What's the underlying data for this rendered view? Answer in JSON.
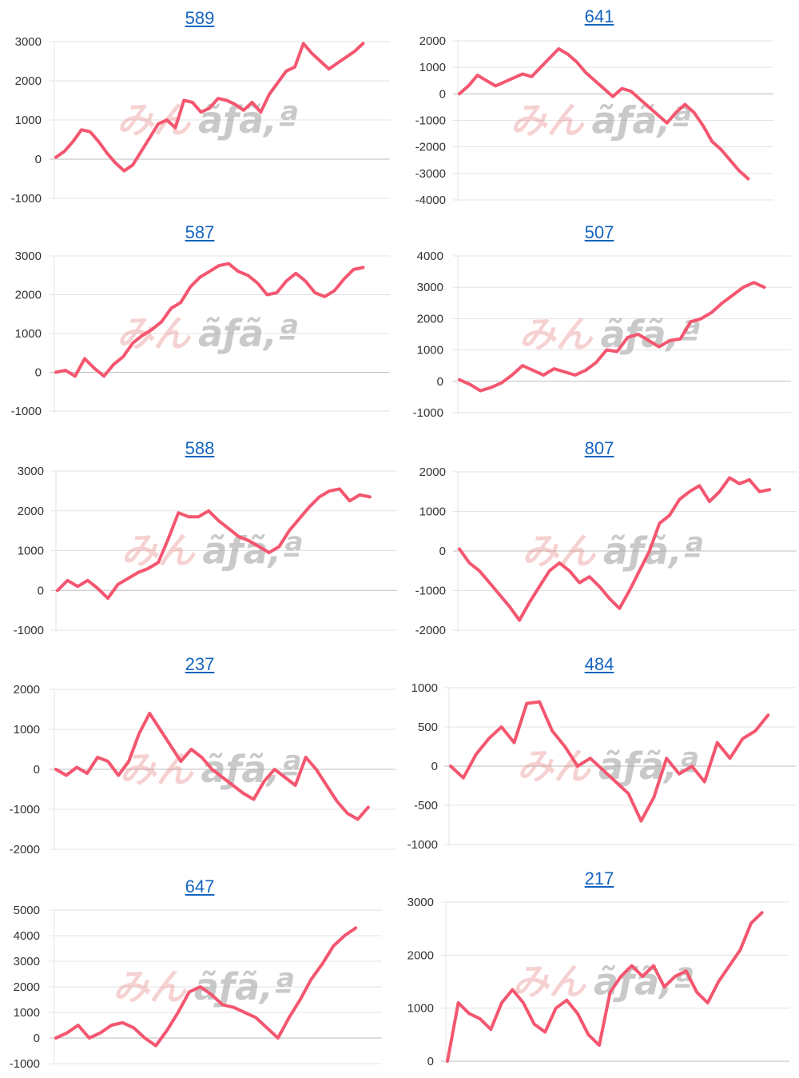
{
  "colors": {
    "line": "#f4566f",
    "title_link": "#1565c0",
    "watermark_a": "#e57373",
    "watermark_b": "#9e9e9e"
  },
  "watermark": {
    "part_a": "みん",
    "part_b": "ãƒã‚ª"
  },
  "chart_data": [
    {
      "type": "line",
      "title": "589",
      "ylim": [
        -1000,
        3000
      ],
      "ticks": [
        3000,
        2000,
        1000,
        0,
        -1000
      ],
      "series": [
        {
          "values": [
            50,
            200,
            450,
            750,
            700,
            450,
            150,
            -100,
            -300,
            -150,
            200,
            550,
            900,
            1000,
            800,
            1500,
            1450,
            1200,
            1300,
            1550,
            1500,
            1400,
            1250,
            1450,
            1200,
            1650,
            1950,
            2250,
            2350,
            2950,
            2700,
            2500,
            2300,
            2450,
            2600,
            2750,
            2950
          ]
        }
      ]
    },
    {
      "type": "line",
      "title": "641",
      "ylim": [
        -4000,
        2000
      ],
      "ticks": [
        2000,
        1000,
        0,
        -1000,
        -2000,
        -3000,
        -4000
      ],
      "series": [
        {
          "values": [
            0,
            300,
            700,
            500,
            300,
            450,
            600,
            750,
            650,
            1000,
            1350,
            1700,
            1500,
            1200,
            800,
            500,
            200,
            -100,
            200,
            100,
            -200,
            -500,
            -800,
            -1100,
            -700,
            -400,
            -700,
            -1200,
            -1800,
            -2100,
            -2500,
            -2900,
            -3200
          ]
        }
      ]
    },
    {
      "type": "line",
      "title": "587",
      "ylim": [
        -1000,
        3000
      ],
      "ticks": [
        3000,
        2000,
        1000,
        0,
        -1000
      ],
      "series": [
        {
          "values": [
            0,
            50,
            -100,
            350,
            100,
            -100,
            200,
            400,
            750,
            950,
            1100,
            1300,
            1650,
            1800,
            2200,
            2450,
            2600,
            2750,
            2800,
            2600,
            2500,
            2300,
            2000,
            2050,
            2350,
            2550,
            2350,
            2050,
            1950,
            2100,
            2400,
            2650,
            2700
          ]
        }
      ]
    },
    {
      "type": "line",
      "title": "507",
      "ylim": [
        -1000,
        4000
      ],
      "ticks": [
        4000,
        3000,
        2000,
        1000,
        0,
        -1000
      ],
      "series": [
        {
          "values": [
            50,
            -100,
            -300,
            -200,
            -50,
            200,
            500,
            350,
            200,
            400,
            300,
            200,
            350,
            600,
            1000,
            950,
            1400,
            1500,
            1300,
            1100,
            1300,
            1350,
            1900,
            2000,
            2200,
            2500,
            2750,
            3000,
            3150,
            3000
          ]
        }
      ]
    },
    {
      "type": "line",
      "title": "588",
      "ylim": [
        -1000,
        3000
      ],
      "ticks": [
        3000,
        2000,
        1000,
        0,
        -1000
      ],
      "series": [
        {
          "values": [
            0,
            250,
            100,
            250,
            50,
            -200,
            150,
            300,
            450,
            550,
            700,
            1300,
            1950,
            1850,
            1850,
            2000,
            1750,
            1550,
            1350,
            1250,
            1100,
            950,
            1100,
            1500,
            1800,
            2100,
            2350,
            2500,
            2550,
            2250,
            2400,
            2350
          ]
        }
      ]
    },
    {
      "type": "line",
      "title": "807",
      "ylim": [
        -2000,
        2000
      ],
      "ticks": [
        2000,
        1000,
        0,
        -1000,
        -2000
      ],
      "series": [
        {
          "values": [
            50,
            -300,
            -500,
            -800,
            -1100,
            -1400,
            -1750,
            -1300,
            -900,
            -500,
            -300,
            -500,
            -800,
            -650,
            -900,
            -1200,
            -1450,
            -1000,
            -500,
            0,
            700,
            900,
            1300,
            1500,
            1650,
            1250,
            1500,
            1850,
            1700,
            1800,
            1500,
            1550
          ]
        }
      ]
    },
    {
      "type": "line",
      "title": "237",
      "ylim": [
        -2000,
        2000
      ],
      "ticks": [
        2000,
        1000,
        0,
        -1000,
        -2000
      ],
      "series": [
        {
          "values": [
            0,
            -150,
            50,
            -100,
            300,
            200,
            -150,
            200,
            900,
            1400,
            1000,
            600,
            200,
            500,
            300,
            0,
            -200,
            -400,
            -600,
            -750,
            -300,
            0,
            -200,
            -400,
            300,
            0,
            -400,
            -800,
            -1100,
            -1250,
            -950
          ]
        }
      ]
    },
    {
      "type": "line",
      "title": "484",
      "ylim": [
        -1000,
        1000
      ],
      "ticks": [
        1000,
        500,
        0,
        -500,
        -1000
      ],
      "series": [
        {
          "values": [
            0,
            -150,
            150,
            350,
            500,
            300,
            800,
            820,
            450,
            250,
            0,
            100,
            -50,
            -200,
            -350,
            -700,
            -400,
            100,
            -100,
            0,
            -200,
            300,
            100,
            350,
            450,
            650
          ]
        }
      ]
    },
    {
      "type": "line",
      "title": "647",
      "ylim": [
        -1000,
        5000
      ],
      "ticks": [
        5000,
        4000,
        3000,
        2000,
        1000,
        0,
        -1000
      ],
      "series": [
        {
          "values": [
            0,
            200,
            500,
            0,
            200,
            500,
            600,
            400,
            0,
            -300,
            300,
            1000,
            1800,
            2000,
            1700,
            1300,
            1200,
            1000,
            800,
            400,
            0,
            800,
            1500,
            2300,
            2900,
            3600,
            4000,
            4300
          ]
        }
      ]
    },
    {
      "type": "line",
      "title": "217",
      "ylim": [
        0,
        3000
      ],
      "ticks": [
        3000,
        2000,
        1000,
        0
      ],
      "series": [
        {
          "values": [
            0,
            1100,
            900,
            800,
            600,
            1100,
            1350,
            1100,
            700,
            550,
            1000,
            1150,
            900,
            500,
            300,
            1300,
            1600,
            1800,
            1600,
            1800,
            1400,
            1600,
            1700,
            1300,
            1100,
            1500,
            1800,
            2100,
            2600,
            2800
          ]
        }
      ]
    }
  ]
}
